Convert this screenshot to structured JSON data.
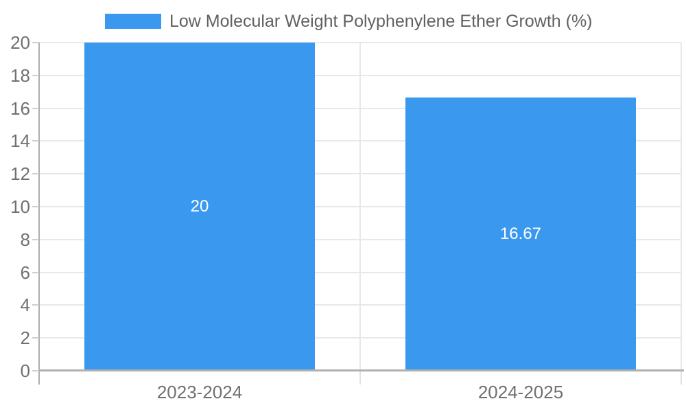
{
  "legend": {
    "label": "Low Molecular Weight Polyphenylene Ether Growth (%)"
  },
  "colors": {
    "bar": "#3a99ef",
    "data_label": "#ffffff",
    "tick_label": "#707070",
    "legend_text": "#616161",
    "grid": "#e8e8e8",
    "axis": "#b0b0b0",
    "background": "#ffffff"
  },
  "chart_data": {
    "type": "bar",
    "title": "Low Molecular Weight Polyphenylene Ether Growth (%)",
    "categories": [
      "2023-2024",
      "2024-2025"
    ],
    "values": [
      20,
      16.67
    ],
    "value_labels": [
      "20",
      "16.67"
    ],
    "ylim": [
      0,
      20
    ],
    "ytick_step": 2,
    "ytick_labels": [
      "0",
      "2",
      "4",
      "6",
      "8",
      "10",
      "12",
      "14",
      "16",
      "18",
      "20"
    ],
    "grid": true,
    "legend_position": "top",
    "bar_color": "#3a99ef"
  }
}
